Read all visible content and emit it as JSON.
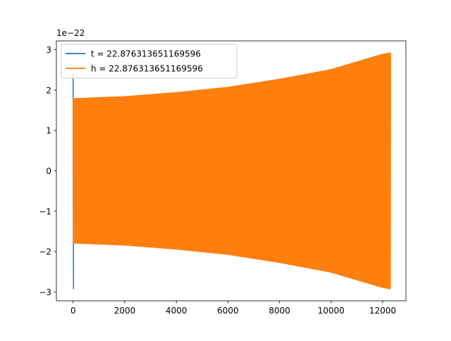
{
  "chart_data": {
    "type": "line",
    "title": "",
    "xlabel": "",
    "ylabel": "",
    "xlim": [
      -650,
      12900
    ],
    "ylim": [
      -3.22,
      3.22
    ],
    "y_scale_label": "1e−22",
    "x_ticks": [
      0,
      2000,
      4000,
      6000,
      8000,
      10000,
      12000
    ],
    "x_tick_labels": [
      "0",
      "2000",
      "4000",
      "6000",
      "8000",
      "10000",
      "12000"
    ],
    "y_ticks": [
      3,
      2,
      1,
      0,
      -1,
      -2,
      -3
    ],
    "y_tick_labels": [
      "3",
      "2",
      "1",
      "0",
      "−1",
      "−2",
      "−3"
    ],
    "grid": false,
    "legend_placement": "upper-left",
    "series": [
      {
        "name": "t = 22.876313651169596",
        "color": "#1f77b4",
        "spike_x": 0,
        "spike_min": -2.93,
        "spike_max": 2.4
      },
      {
        "name": "h = 22.876313651169596",
        "color": "#ff7f0e",
        "x_start": 0,
        "x_end": 12300,
        "envelope_x": [
          0,
          2000,
          4000,
          6000,
          8000,
          10000,
          12000,
          12300
        ],
        "envelope_amp": [
          1.8,
          1.85,
          1.95,
          2.08,
          2.28,
          2.52,
          2.9,
          2.93
        ]
      }
    ]
  }
}
